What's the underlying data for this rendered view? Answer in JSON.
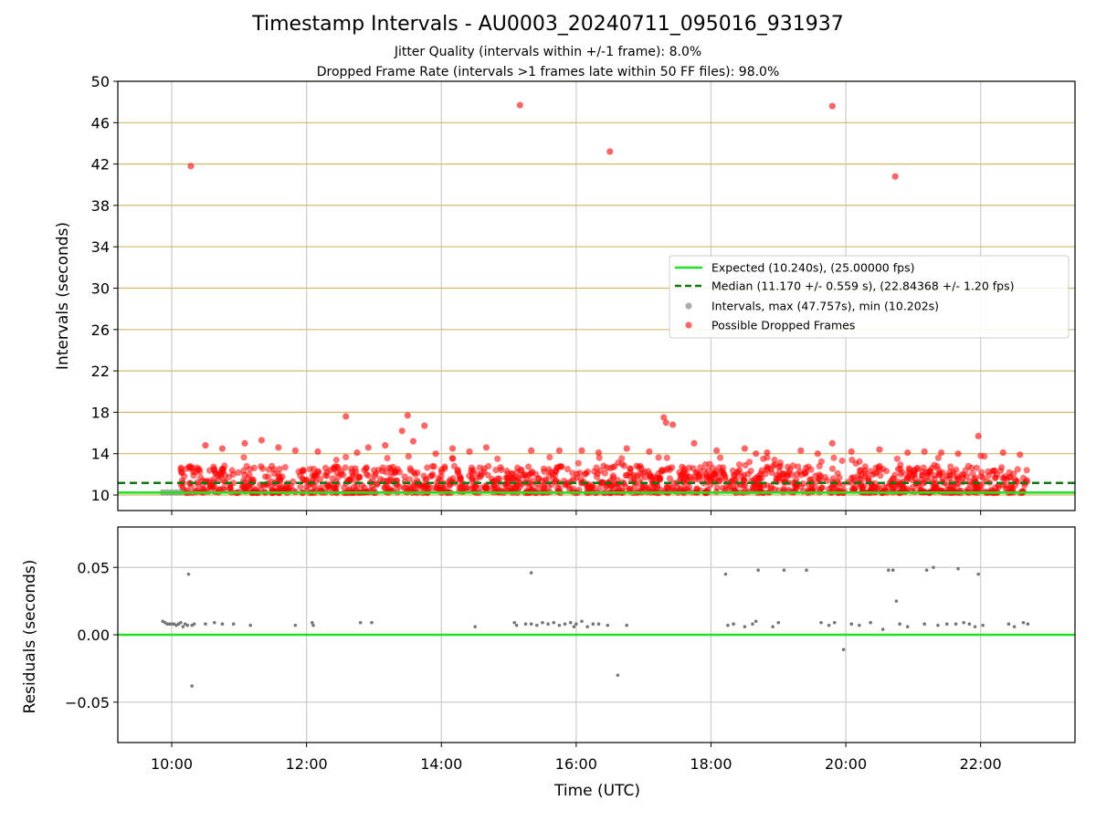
{
  "title": "Timestamp Intervals - AU0003_20240711_095016_931937",
  "subtitle_1": "Jitter Quality (intervals within +/-1 frame): 8.0%",
  "subtitle_2": "Dropped Frame Rate (intervals >1 frames late within 50 FF files): 98.0%",
  "colors": {
    "expected": "#22e022",
    "median": "#117711",
    "intervals": "#888888",
    "dropped": "#ff0000",
    "threshold_lines": "#d4b86a",
    "grid": "#cccccc",
    "residual_points": "#777777"
  },
  "chart_data": [
    {
      "type": "scatter",
      "panel": "top",
      "ylabel": "Intervals (seconds)",
      "xlabel": "",
      "xlim": [
        "09:12",
        "23:24"
      ],
      "ylim": [
        8.5,
        50
      ],
      "xticks": [
        "10:00",
        "12:00",
        "14:00",
        "16:00",
        "18:00",
        "20:00",
        "22:00"
      ],
      "yticks": [
        10,
        14,
        18,
        22,
        26,
        30,
        34,
        38,
        42,
        46,
        50
      ],
      "x_grid": true,
      "threshold_lines": [
        10,
        14,
        18,
        22,
        26,
        30,
        34,
        38,
        42,
        46,
        50
      ],
      "expected_line": 10.24,
      "median_line": 11.17,
      "legend_position": "center-right",
      "legend": [
        "Expected (10.240s), (25.00000 fps)",
        "Median (11.170 +/- 0.559 s), (22.84368 +/- 1.20 fps)",
        "Intervals, max (47.757s), min (10.202s)",
        "Possible Dropped Frames"
      ],
      "series": [
        {
          "name": "Intervals, max (47.757s), min (10.202s)",
          "points": [
            [
              "09:52",
              10.25
            ],
            [
              "09:56",
              10.25
            ],
            [
              "10:00",
              10.25
            ],
            [
              "10:04",
              10.25
            ],
            [
              "10:08",
              10.26
            ]
          ]
        },
        {
          "name": "Possible Dropped Frames",
          "dense_band": {
            "x_range": [
              "10:08",
              "22:42"
            ],
            "y_range": [
              10.2,
              12.8
            ]
          },
          "outliers": [
            [
              "10:17",
              41.8
            ],
            [
              "15:10",
              47.7
            ],
            [
              "16:30",
              43.2
            ],
            [
              "19:48",
              47.6
            ],
            [
              "20:44",
              40.8
            ],
            [
              "12:35",
              17.6
            ],
            [
              "13:30",
              17.7
            ],
            [
              "13:45",
              16.7
            ],
            [
              "13:25",
              16.2
            ],
            [
              "17:18",
              17.5
            ],
            [
              "17:20",
              17.0
            ],
            [
              "17:26",
              16.8
            ],
            [
              "19:48",
              15.0
            ],
            [
              "21:58",
              15.7
            ],
            [
              "10:30",
              14.8
            ],
            [
              "11:20",
              15.3
            ],
            [
              "11:05",
              15.0
            ],
            [
              "13:10",
              14.8
            ],
            [
              "14:40",
              14.6
            ],
            [
              "15:45",
              14.3
            ],
            [
              "16:05",
              14.3
            ],
            [
              "17:45",
              15.0
            ],
            [
              "18:30",
              14.5
            ],
            [
              "19:20",
              14.3
            ],
            [
              "20:30",
              14.4
            ],
            [
              "21:10",
              14.2
            ],
            [
              "22:20",
              14.1
            ],
            [
              "11:50",
              14.3
            ],
            [
              "12:10",
              14.2
            ],
            [
              "12:55",
              14.6
            ],
            [
              "13:35",
              15.2
            ],
            [
              "14:10",
              14.5
            ],
            [
              "15:20",
              14.3
            ],
            [
              "16:45",
              14.5
            ],
            [
              "18:05",
              14.3
            ],
            [
              "18:50",
              14.1
            ],
            [
              "20:05",
              14.2
            ],
            [
              "21:40",
              14.0
            ],
            [
              "22:35",
              13.9
            ],
            [
              "10:45",
              14.5
            ],
            [
              "11:35",
              14.6
            ],
            [
              "12:45",
              14.1
            ],
            [
              "14:25",
              14.2
            ],
            [
              "17:05",
              14.2
            ],
            [
              "19:35",
              14.0
            ],
            [
              "20:55",
              14.1
            ],
            [
              "21:25",
              14.1
            ],
            [
              "13:55",
              14.0
            ],
            [
              "16:20",
              14.1
            ],
            [
              "18:40",
              14.0
            ]
          ]
        }
      ]
    },
    {
      "type": "scatter",
      "panel": "bottom",
      "ylabel": "Residuals (seconds)",
      "xlabel": "Time (UTC)",
      "xlim": [
        "09:12",
        "23:24"
      ],
      "ylim": [
        -0.08,
        0.08
      ],
      "yticks": [
        0.05,
        0.0,
        -0.05
      ],
      "ytick_labels": [
        "0.05",
        "0.00",
        "−0.05"
      ],
      "xticks": [
        "10:00",
        "12:00",
        "14:00",
        "16:00",
        "18:00",
        "20:00",
        "22:00"
      ],
      "grid": true,
      "zero_line": 0.0,
      "series": [
        {
          "name": "",
          "points": [
            [
              "09:52",
              0.01
            ],
            [
              "09:54",
              0.009
            ],
            [
              "09:56",
              0.008
            ],
            [
              "09:58",
              0.008
            ],
            [
              "10:00",
              0.008
            ],
            [
              "10:02",
              0.008
            ],
            [
              "10:04",
              0.007
            ],
            [
              "10:06",
              0.008
            ],
            [
              "10:08",
              0.009
            ],
            [
              "10:10",
              0.006
            ],
            [
              "10:12",
              0.008
            ],
            [
              "10:14",
              0.007
            ],
            [
              "10:15",
              0.045
            ],
            [
              "10:18",
              0.007
            ],
            [
              "10:20",
              0.008
            ],
            [
              "10:18",
              -0.038
            ],
            [
              "10:30",
              0.008
            ],
            [
              "10:38",
              0.009
            ],
            [
              "10:45",
              0.008
            ],
            [
              "10:55",
              0.008
            ],
            [
              "11:10",
              0.007
            ],
            [
              "11:50",
              0.007
            ],
            [
              "12:05",
              0.009
            ],
            [
              "12:06",
              0.007
            ],
            [
              "12:48",
              0.009
            ],
            [
              "12:58",
              0.009
            ],
            [
              "14:30",
              0.006
            ],
            [
              "15:05",
              0.009
            ],
            [
              "15:07",
              0.007
            ],
            [
              "15:20",
              0.046
            ],
            [
              "15:15",
              0.008
            ],
            [
              "15:20",
              0.008
            ],
            [
              "15:25",
              0.007
            ],
            [
              "15:30",
              0.009
            ],
            [
              "15:35",
              0.008
            ],
            [
              "15:40",
              0.009
            ],
            [
              "15:45",
              0.007
            ],
            [
              "15:50",
              0.008
            ],
            [
              "15:55",
              0.009
            ],
            [
              "15:58",
              0.006
            ],
            [
              "16:00",
              0.008
            ],
            [
              "16:05",
              0.01
            ],
            [
              "16:10",
              0.006
            ],
            [
              "16:15",
              0.008
            ],
            [
              "16:20",
              0.008
            ],
            [
              "16:28",
              0.007
            ],
            [
              "16:37",
              -0.03
            ],
            [
              "16:45",
              0.007
            ],
            [
              "18:15",
              0.007
            ],
            [
              "18:13",
              0.045
            ],
            [
              "18:20",
              0.008
            ],
            [
              "18:30",
              0.006
            ],
            [
              "18:37",
              0.008
            ],
            [
              "18:40",
              0.01
            ],
            [
              "18:42",
              0.048
            ],
            [
              "18:55",
              0.006
            ],
            [
              "19:00",
              0.009
            ],
            [
              "19:05",
              0.048
            ],
            [
              "19:25",
              0.048
            ],
            [
              "19:38",
              0.009
            ],
            [
              "19:45",
              0.007
            ],
            [
              "19:50",
              0.009
            ],
            [
              "19:58",
              -0.011
            ],
            [
              "20:05",
              0.008
            ],
            [
              "20:12",
              0.007
            ],
            [
              "20:22",
              0.009
            ],
            [
              "20:33",
              0.004
            ],
            [
              "20:38",
              0.048
            ],
            [
              "20:42",
              0.048
            ],
            [
              "20:45",
              0.025
            ],
            [
              "20:48",
              0.008
            ],
            [
              "20:55",
              0.006
            ],
            [
              "21:10",
              0.008
            ],
            [
              "21:12",
              0.048
            ],
            [
              "21:18",
              0.05
            ],
            [
              "21:22",
              0.007
            ],
            [
              "21:30",
              0.008
            ],
            [
              "21:38",
              0.008
            ],
            [
              "21:40",
              0.049
            ],
            [
              "21:45",
              0.009
            ],
            [
              "21:50",
              0.008
            ],
            [
              "21:55",
              0.006
            ],
            [
              "21:58",
              0.045
            ],
            [
              "22:02",
              0.007
            ],
            [
              "22:25",
              0.008
            ],
            [
              "22:30",
              0.006
            ],
            [
              "22:38",
              0.009
            ],
            [
              "22:42",
              0.008
            ]
          ]
        }
      ]
    }
  ]
}
